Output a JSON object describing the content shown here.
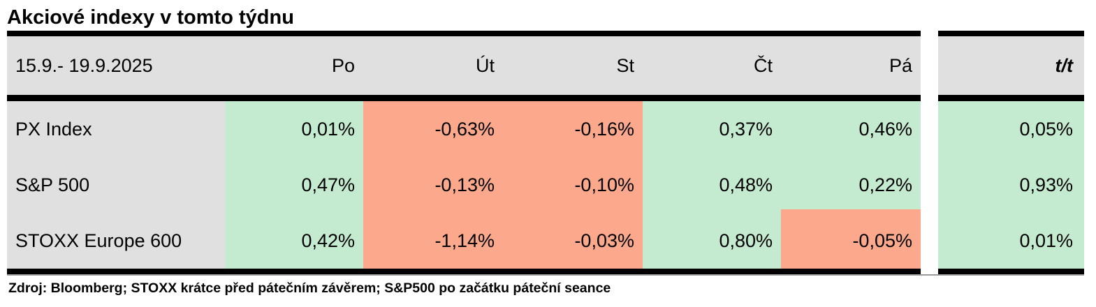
{
  "title": "Akciové indexy v tomto týdnu",
  "colors": {
    "positive_cell": "#c4ebcf",
    "negative_cell": "#fba88c",
    "header_cell": "#e0e0e0",
    "rule": "#000000",
    "thin_rule": "#9a9a9a"
  },
  "table": {
    "period": "15.9.- 19.9.2025",
    "day_headers": [
      "Po",
      "Út",
      "St",
      "Čt",
      "Pá"
    ],
    "summary_header": "t/t",
    "rows": [
      {
        "name": "PX Index",
        "values": [
          "0,01%",
          "-0,63%",
          "-0,16%",
          "0,37%",
          "0,46%"
        ],
        "tt": "0,05%"
      },
      {
        "name": "S&P 500",
        "values": [
          "0,47%",
          "-0,13%",
          "-0,10%",
          "0,48%",
          "0,22%"
        ],
        "tt": "0,93%"
      },
      {
        "name": "STOXX Europe 600",
        "values": [
          "0,42%",
          "-1,14%",
          "-0,03%",
          "0,80%",
          "-0,05%"
        ],
        "tt": "0,01%"
      }
    ]
  },
  "footer": "Zdroj: Bloomberg; STOXX krátce před pátečním závěrem; S&P500 po začátku páteční seance",
  "chart_data": {
    "type": "table",
    "title": "Akciové indexy v tomto týdnu",
    "period": "15.9.- 19.9.2025",
    "columns": [
      "Po",
      "Út",
      "St",
      "Čt",
      "Pá",
      "t/t"
    ],
    "rows": [
      {
        "name": "PX Index",
        "values_pct": [
          0.01,
          -0.63,
          -0.16,
          0.37,
          0.46,
          0.05
        ]
      },
      {
        "name": "S&P 500",
        "values_pct": [
          0.47,
          -0.13,
          -0.1,
          0.48,
          0.22,
          0.93
        ]
      },
      {
        "name": "STOXX Europe 600",
        "values_pct": [
          0.42,
          -1.14,
          -0.03,
          0.8,
          -0.05,
          0.01
        ]
      }
    ],
    "cell_coloring": "green = positive daily change, salmon red = negative daily change",
    "source_note": "Zdroj: Bloomberg; STOXX krátce před pátečním závěrem; S&P500 po začátku páteční seance"
  }
}
